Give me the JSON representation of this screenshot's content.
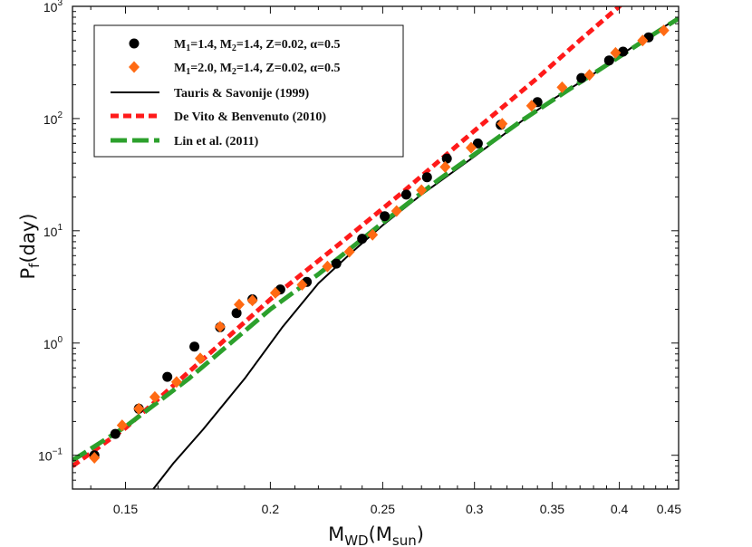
{
  "chart_data": {
    "type": "scatter",
    "title": "",
    "xscale": "log",
    "yscale": "log",
    "xlim": [
      0.135,
      0.45
    ],
    "ylim": [
      0.05,
      1000
    ],
    "xlabel": {
      "main": "M",
      "sub1": "WD",
      "mid": "(M",
      "sub2": "sun",
      "end": ")"
    },
    "ylabel": {
      "main": "P",
      "sub": "f",
      "end": "(day)"
    },
    "xticks": [
      {
        "value": 0.15,
        "label": "0.15"
      },
      {
        "value": 0.2,
        "label": "0.2"
      },
      {
        "value": 0.25,
        "label": "0.25"
      },
      {
        "value": 0.3,
        "label": "0.3"
      },
      {
        "value": 0.35,
        "label": "0.35"
      },
      {
        "value": 0.4,
        "label": "0.4"
      },
      {
        "value": 0.45,
        "label": "0.45"
      }
    ],
    "yticks": [
      {
        "value": 0.1,
        "base": "10",
        "exp": "−1"
      },
      {
        "value": 1,
        "base": "10",
        "exp": "0"
      },
      {
        "value": 10,
        "base": "10",
        "exp": "1"
      },
      {
        "value": 100,
        "base": "10",
        "exp": "2"
      },
      {
        "value": 1000,
        "base": "10",
        "exp": "3"
      }
    ],
    "legend_position": "top-left",
    "series": [
      {
        "name": "M1=1.4, M2=1.4, Z=0.02, α=0.5",
        "legend": {
          "a": "M",
          "s1": "1",
          "b": "=1.4, M",
          "s2": "2",
          "c": "=1.4, Z=0.02, α=0.5"
        },
        "kind": "marker-circle",
        "color": "#000000",
        "points": [
          [
            0.141,
            0.1
          ],
          [
            0.147,
            0.155
          ],
          [
            0.154,
            0.26
          ],
          [
            0.163,
            0.5
          ],
          [
            0.172,
            0.93
          ],
          [
            0.181,
            1.38
          ],
          [
            0.187,
            1.85
          ],
          [
            0.193,
            2.45
          ],
          [
            0.204,
            3.0
          ],
          [
            0.215,
            3.5
          ],
          [
            0.228,
            5.1
          ],
          [
            0.24,
            8.5
          ],
          [
            0.251,
            13.5
          ],
          [
            0.262,
            21.0
          ],
          [
            0.273,
            30.0
          ],
          [
            0.284,
            44.0
          ],
          [
            0.302,
            60.0
          ],
          [
            0.316,
            88.0
          ],
          [
            0.34,
            140.0
          ],
          [
            0.371,
            230.0
          ],
          [
            0.392,
            330.0
          ],
          [
            0.403,
            395.0
          ],
          [
            0.424,
            530.0
          ]
        ]
      },
      {
        "name": "M1=2.0, M2=1.4, Z=0.02, α=0.5",
        "legend": {
          "a": "M",
          "s1": "1",
          "b": "=2.0, M",
          "s2": "2",
          "c": "=1.4, Z=0.02, α=0.5"
        },
        "kind": "marker-diamond",
        "color": "#ff6a13",
        "points": [
          [
            0.141,
            0.095
          ],
          [
            0.149,
            0.185
          ],
          [
            0.154,
            0.26
          ],
          [
            0.159,
            0.33
          ],
          [
            0.166,
            0.45
          ],
          [
            0.174,
            0.73
          ],
          [
            0.181,
            1.4
          ],
          [
            0.188,
            2.2
          ],
          [
            0.193,
            2.4
          ],
          [
            0.202,
            2.8
          ],
          [
            0.213,
            3.3
          ],
          [
            0.224,
            4.8
          ],
          [
            0.234,
            6.5
          ],
          [
            0.245,
            9.2
          ],
          [
            0.257,
            15.0
          ],
          [
            0.27,
            23.0
          ],
          [
            0.283,
            37.0
          ],
          [
            0.298,
            55.0
          ],
          [
            0.317,
            90.0
          ],
          [
            0.336,
            130.0
          ],
          [
            0.357,
            190.0
          ],
          [
            0.377,
            245.0
          ],
          [
            0.397,
            385.0
          ],
          [
            0.419,
            495.0
          ],
          [
            0.437,
            610.0
          ]
        ]
      },
      {
        "name": "Tauris & Savonije (1999)",
        "kind": "line-solid",
        "color": "#000000",
        "points": [
          [
            0.1585,
            0.05
          ],
          [
            0.165,
            0.085
          ],
          [
            0.175,
            0.17
          ],
          [
            0.19,
            0.48
          ],
          [
            0.205,
            1.4
          ],
          [
            0.22,
            3.4
          ],
          [
            0.235,
            6.4
          ],
          [
            0.25,
            11.2
          ],
          [
            0.27,
            21.0
          ],
          [
            0.3,
            46.0
          ],
          [
            0.33,
            96.0
          ],
          [
            0.35,
            147.0
          ],
          [
            0.38,
            250.0
          ],
          [
            0.4,
            360.0
          ],
          [
            0.42,
            510.0
          ],
          [
            0.45,
            790.0
          ]
        ]
      },
      {
        "name": "De Vito & Benvenuto (2010)",
        "kind": "line-dashed",
        "color": "#ff1a1a",
        "points": [
          [
            0.135,
            0.08
          ],
          [
            0.15,
            0.175
          ],
          [
            0.17,
            0.55
          ],
          [
            0.2,
            2.45
          ],
          [
            0.23,
            7.8
          ],
          [
            0.26,
            22.0
          ],
          [
            0.3,
            78.0
          ],
          [
            0.34,
            230.0
          ],
          [
            0.37,
            500.0
          ],
          [
            0.4,
            1000.0
          ],
          [
            0.416,
            1500.0
          ]
        ]
      },
      {
        "name": "Lin et al. (2011)",
        "kind": "line-longdash",
        "color": "#2ca02c",
        "points": [
          [
            0.135,
            0.09
          ],
          [
            0.15,
            0.18
          ],
          [
            0.17,
            0.48
          ],
          [
            0.2,
            2.0
          ],
          [
            0.22,
            4.1
          ],
          [
            0.25,
            11.8
          ],
          [
            0.28,
            29.0
          ],
          [
            0.3,
            48.0
          ],
          [
            0.33,
            97.0
          ],
          [
            0.36,
            175.0
          ],
          [
            0.4,
            355.0
          ],
          [
            0.43,
            580.0
          ],
          [
            0.45,
            780.0
          ]
        ]
      }
    ]
  }
}
